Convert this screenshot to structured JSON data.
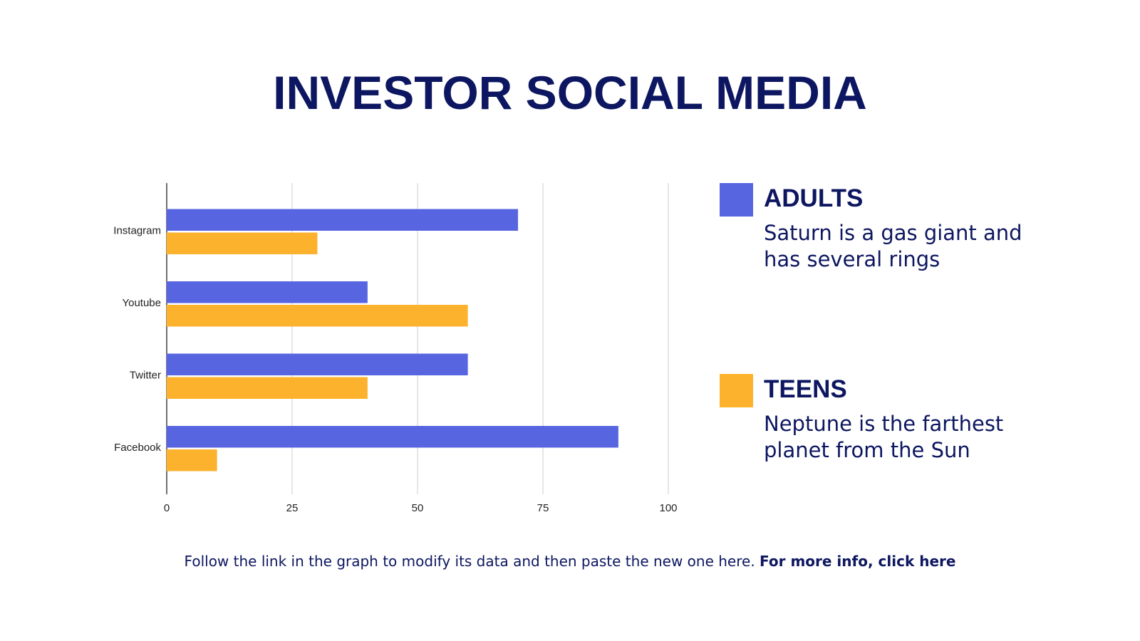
{
  "chart_data": {
    "type": "bar",
    "orientation": "horizontal",
    "title": "INVESTOR SOCIAL MEDIA",
    "categories": [
      "Instagram",
      "Youtube",
      "Twitter",
      "Facebook"
    ],
    "series": [
      {
        "name": "ADULTS",
        "color": "#5865e0",
        "values": [
          70,
          40,
          60,
          90
        ],
        "description": "Saturn is a gas giant and has several rings"
      },
      {
        "name": "TEENS",
        "color": "#fdb22e",
        "values": [
          30,
          60,
          40,
          10
        ],
        "description": "Neptune is the farthest planet from the Sun"
      }
    ],
    "xlim": [
      0,
      100
    ],
    "xticks": [
      0,
      25,
      50,
      75,
      100
    ],
    "grid": true,
    "note": "Follow the link in the graph to modify its data and then paste the new one here.",
    "note_link": "For more info, click here"
  }
}
